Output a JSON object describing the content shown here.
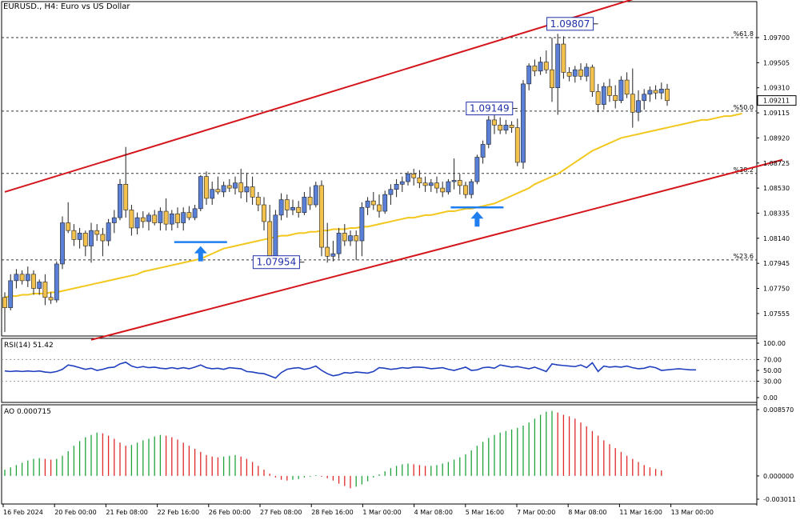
{
  "header": {
    "symbol_line": "EURUSD., H4:  Euro vs US Dollar"
  },
  "colors": {
    "bull_body": "#5a7fd6",
    "bear_body": "#f2c14e",
    "wick": "#222222",
    "channel": "#d4161c",
    "ma": "#f2c81f",
    "rsi": "#1f3fbf",
    "ao_up": "#1fa33a",
    "ao_down": "#e0282b",
    "marker": "#1f7ef0",
    "fib": "#333333",
    "label_box": "#1f2fa8",
    "price_tag": "#ffffff"
  },
  "chart_data": [
    {
      "type": "candlestick",
      "title": "EURUSD., H4: Euro vs US Dollar",
      "y_ticks": [
        "1.09700",
        "1.09505",
        "1.09310",
        "1.09115",
        "1.08920",
        "1.08725",
        "1.08530",
        "1.08335",
        "1.08140",
        "1.07945",
        "1.07750",
        "1.07555"
      ],
      "ylim": [
        1.0738,
        1.0998
      ],
      "x_tick_labels": [
        "16 Feb 2024",
        "20 Feb 00:00",
        "21 Feb 08:00",
        "22 Feb 16:00",
        "26 Feb 00:00",
        "27 Feb 08:00",
        "28 Feb 16:00",
        "1 Mar 00:00",
        "4 Mar 08:00",
        "5 Mar 16:00",
        "7 Mar 00:00",
        "8 Mar 08:00",
        "11 Mar 16:00",
        "13 Mar 00:00"
      ],
      "current_price": "1.09211",
      "fib_levels": [
        {
          "label": "%61.8",
          "value": 1.097
        },
        {
          "label": "%50.0",
          "value": 1.09129
        },
        {
          "label": "%38.2",
          "value": 1.08644
        },
        {
          "label": "%23.6",
          "value": 1.07972
        }
      ],
      "price_labels": [
        {
          "text": "1.09807",
          "value": 1.09807,
          "candle": 103
        },
        {
          "text": "1.09149",
          "value": 1.09149,
          "candle": 89
        },
        {
          "text": "1.07954",
          "value": 1.07954,
          "candle": 52
        }
      ],
      "channel_lines": [
        {
          "p1": [
            0,
            1.085
          ],
          "p2": [
            115,
            1.1008
          ]
        },
        {
          "p1": [
            15,
            1.0735
          ],
          "p2": [
            135,
            1.0875
          ]
        }
      ],
      "ma_values": [
        1.0768,
        1.0769,
        1.0769,
        1.077,
        1.077,
        1.0771,
        1.0771,
        1.0771,
        1.0772,
        1.0772,
        1.0773,
        1.0774,
        1.0775,
        1.0776,
        1.0777,
        1.0778,
        1.0779,
        1.078,
        1.0781,
        1.0782,
        1.0783,
        1.0784,
        1.0785,
        1.0786,
        1.0788,
        1.0789,
        1.079,
        1.0791,
        1.0792,
        1.0793,
        1.0794,
        1.0795,
        1.0796,
        1.0797,
        1.0798,
        1.08,
        1.0802,
        1.0804,
        1.0806,
        1.0807,
        1.0808,
        1.0809,
        1.081,
        1.0811,
        1.0812,
        1.0813,
        1.0814,
        1.0815,
        1.0816,
        1.0816,
        1.0817,
        1.0818,
        1.0818,
        1.0819,
        1.0819,
        1.082,
        1.082,
        1.0821,
        1.0821,
        1.0821,
        1.0822,
        1.0822,
        1.0823,
        1.0823,
        1.0824,
        1.0825,
        1.0826,
        1.0827,
        1.0828,
        1.0829,
        1.083,
        1.083,
        1.0831,
        1.0832,
        1.0832,
        1.0833,
        1.0834,
        1.0835,
        1.0835,
        1.0836,
        1.0837,
        1.0837,
        1.0838,
        1.0839,
        1.084,
        1.0841,
        1.0843,
        1.0845,
        1.0847,
        1.0849,
        1.0851,
        1.0853,
        1.0856,
        1.0858,
        1.086,
        1.0862,
        1.0864,
        1.0867,
        1.087,
        1.0873,
        1.0876,
        1.0879,
        1.0882,
        1.0884,
        1.0886,
        1.0888,
        1.089,
        1.0892,
        1.0893,
        1.0894,
        1.0895,
        1.0896,
        1.0897,
        1.0898,
        1.0899,
        1.09,
        1.0901,
        1.0902,
        1.0903,
        1.0904,
        1.0905,
        1.0906,
        1.0906,
        1.0907,
        1.0908,
        1.0909,
        1.0909,
        1.091,
        1.0911
      ],
      "candles": [
        [
          1.0768,
          1.0772,
          1.0741,
          1.076
        ],
        [
          1.076,
          1.0786,
          1.0758,
          1.0781
        ],
        [
          1.0781,
          1.079,
          1.0775,
          1.0786
        ],
        [
          1.0786,
          1.0789,
          1.0778,
          1.0781
        ],
        [
          1.0781,
          1.0792,
          1.0776,
          1.0786
        ],
        [
          1.0786,
          1.0789,
          1.077,
          1.0775
        ],
        [
          1.0775,
          1.0782,
          1.077,
          1.078
        ],
        [
          1.078,
          1.0786,
          1.0762,
          1.0768
        ],
        [
          1.0768,
          1.0772,
          1.0763,
          1.0766
        ],
        [
          1.0766,
          1.0796,
          1.0764,
          1.0794
        ],
        [
          1.0794,
          1.0831,
          1.079,
          1.0826
        ],
        [
          1.0826,
          1.0842,
          1.0818,
          1.082
        ],
        [
          1.082,
          1.0825,
          1.0808,
          1.0813
        ],
        [
          1.0813,
          1.0822,
          1.0806,
          1.0818
        ],
        [
          1.0818,
          1.082,
          1.08,
          1.0808
        ],
        [
          1.0808,
          1.0826,
          1.0795,
          1.082
        ],
        [
          1.082,
          1.0825,
          1.0812,
          1.0817
        ],
        [
          1.0817,
          1.0822,
          1.08,
          1.0812
        ],
        [
          1.0812,
          1.0829,
          1.0808,
          1.0826
        ],
        [
          1.0826,
          1.0836,
          1.0818,
          1.083
        ],
        [
          1.083,
          1.086,
          1.0828,
          1.0856
        ],
        [
          1.0856,
          1.0885,
          1.083,
          1.0836
        ],
        [
          1.0836,
          1.084,
          1.0816,
          1.0822
        ],
        [
          1.0822,
          1.0834,
          1.0817,
          1.083
        ],
        [
          1.083,
          1.0835,
          1.0822,
          1.0827
        ],
        [
          1.0827,
          1.0834,
          1.082,
          1.0832
        ],
        [
          1.0832,
          1.0836,
          1.0824,
          1.0826
        ],
        [
          1.0826,
          1.0838,
          1.082,
          1.0835
        ],
        [
          1.0835,
          1.0845,
          1.082,
          1.0825
        ],
        [
          1.0825,
          1.0836,
          1.082,
          1.0833
        ],
        [
          1.0833,
          1.0838,
          1.0822,
          1.0826
        ],
        [
          1.0826,
          1.0838,
          1.082,
          1.0834
        ],
        [
          1.0834,
          1.0839,
          1.0828,
          1.083
        ],
        [
          1.083,
          1.084,
          1.0828,
          1.0837
        ],
        [
          1.0837,
          1.0863,
          1.0835,
          1.0862
        ],
        [
          1.0862,
          1.0866,
          1.084,
          1.0845
        ],
        [
          1.0845,
          1.0858,
          1.084,
          1.0852
        ],
        [
          1.0852,
          1.0862,
          1.0848,
          1.085
        ],
        [
          1.085,
          1.0858,
          1.0846,
          1.0855
        ],
        [
          1.0855,
          1.086,
          1.085,
          1.0853
        ],
        [
          1.0853,
          1.0862,
          1.0848,
          1.0857
        ],
        [
          1.0857,
          1.0868,
          1.0845,
          1.085
        ],
        [
          1.085,
          1.0865,
          1.0842,
          1.0854
        ],
        [
          1.0854,
          1.0862,
          1.084,
          1.0846
        ],
        [
          1.0846,
          1.085,
          1.0835,
          1.084
        ],
        [
          1.084,
          1.0846,
          1.082,
          1.0827
        ],
        [
          1.0827,
          1.084,
          1.0794,
          1.08
        ],
        [
          1.08,
          1.0836,
          1.0798,
          1.0832
        ],
        [
          1.0832,
          1.0849,
          1.0828,
          1.0844
        ],
        [
          1.0844,
          1.0848,
          1.083,
          1.0836
        ],
        [
          1.0836,
          1.0844,
          1.0832,
          1.0838
        ],
        [
          1.0838,
          1.0843,
          1.083,
          1.0834
        ],
        [
          1.0834,
          1.085,
          1.0832,
          1.0846
        ],
        [
          1.0846,
          1.0854,
          1.0836,
          1.084
        ],
        [
          1.084,
          1.0858,
          1.0838,
          1.0855
        ],
        [
          1.0855,
          1.0859,
          1.08,
          1.0807
        ],
        [
          1.0807,
          1.0826,
          1.0795,
          1.08
        ],
        [
          1.08,
          1.0812,
          1.0796,
          1.0802
        ],
        [
          1.0802,
          1.0822,
          1.0798,
          1.0818
        ],
        [
          1.0818,
          1.0825,
          1.0808,
          1.0812
        ],
        [
          1.0812,
          1.082,
          1.0808,
          1.0816
        ],
        [
          1.0816,
          1.082,
          1.0797,
          1.0812
        ],
        [
          1.0812,
          1.0842,
          1.08,
          1.0838
        ],
        [
          1.0838,
          1.0846,
          1.0832,
          1.0843
        ],
        [
          1.0843,
          1.085,
          1.0836,
          1.084
        ],
        [
          1.084,
          1.0848,
          1.083,
          1.0835
        ],
        [
          1.0835,
          1.0851,
          1.0833,
          1.0848
        ],
        [
          1.0848,
          1.0856,
          1.084,
          1.0852
        ],
        [
          1.0852,
          1.086,
          1.0846,
          1.0856
        ],
        [
          1.0856,
          1.0862,
          1.085,
          1.0858
        ],
        [
          1.0858,
          1.0866,
          1.0855,
          1.0864
        ],
        [
          1.0864,
          1.0868,
          1.0855,
          1.0861
        ],
        [
          1.0861,
          1.0867,
          1.0853,
          1.0857
        ],
        [
          1.0857,
          1.0862,
          1.085,
          1.0855
        ],
        [
          1.0855,
          1.086,
          1.085,
          1.0857
        ],
        [
          1.0857,
          1.0862,
          1.0849,
          1.0853
        ],
        [
          1.0853,
          1.0858,
          1.0846,
          1.085
        ],
        [
          1.085,
          1.086,
          1.0848,
          1.0858
        ],
        [
          1.0858,
          1.0876,
          1.0852,
          1.0859
        ],
        [
          1.0859,
          1.0864,
          1.0848,
          1.0855
        ],
        [
          1.0855,
          1.0858,
          1.0845,
          1.0848
        ],
        [
          1.0848,
          1.086,
          1.0845,
          1.0858
        ],
        [
          1.0858,
          1.0879,
          1.0856,
          1.0877
        ],
        [
          1.0877,
          1.089,
          1.0872,
          1.0887
        ],
        [
          1.0887,
          1.0909,
          1.0884,
          1.0906
        ],
        [
          1.0906,
          1.091,
          1.0895,
          1.0902
        ],
        [
          1.0902,
          1.0908,
          1.0895,
          1.0898
        ],
        [
          1.0898,
          1.0906,
          1.0895,
          1.0902
        ],
        [
          1.0902,
          1.0905,
          1.0896,
          1.09
        ],
        [
          1.09,
          1.0907,
          1.087,
          1.0873
        ],
        [
          1.0873,
          1.0937,
          1.0868,
          1.0934
        ],
        [
          1.0934,
          1.095,
          1.0929,
          1.0948
        ],
        [
          1.0948,
          1.0953,
          1.094,
          1.0944
        ],
        [
          1.0944,
          1.0955,
          1.0941,
          1.0951
        ],
        [
          1.0951,
          1.096,
          1.0942,
          1.0945
        ],
        [
          1.0945,
          1.097,
          1.092,
          1.0931
        ],
        [
          1.0931,
          1.0973,
          1.091,
          1.0965
        ],
        [
          1.0965,
          1.0971,
          1.0938,
          1.0943
        ],
        [
          1.0943,
          1.0947,
          1.0936,
          1.094
        ],
        [
          1.094,
          1.0948,
          1.0935,
          1.0945
        ],
        [
          1.0945,
          1.095,
          1.0937,
          1.094
        ],
        [
          1.094,
          1.095,
          1.0936,
          1.0947
        ],
        [
          1.0947,
          1.0949,
          1.0924,
          1.0928
        ],
        [
          1.0928,
          1.0934,
          1.0912,
          1.0918
        ],
        [
          1.0918,
          1.0935,
          1.0914,
          1.0932
        ],
        [
          1.0932,
          1.0938,
          1.092,
          1.0925
        ],
        [
          1.0925,
          1.0933,
          1.0915,
          1.0921
        ],
        [
          1.0921,
          1.094,
          1.0919,
          1.0937
        ],
        [
          1.0937,
          1.0943,
          1.0923,
          1.0926
        ],
        [
          1.0926,
          1.0946,
          1.09,
          1.0912
        ],
        [
          1.0912,
          1.0929,
          1.0905,
          1.0921
        ],
        [
          1.0921,
          1.093,
          1.0914,
          1.0926
        ],
        [
          1.0926,
          1.0932,
          1.092,
          1.0929
        ],
        [
          1.0929,
          1.0933,
          1.0922,
          1.0927
        ],
        [
          1.0927,
          1.0935,
          1.0922,
          1.093
        ],
        [
          1.093,
          1.0934,
          1.0917,
          1.0921
        ]
      ],
      "signal_markers": [
        {
          "candle": 34,
          "value": 1.0811
        },
        {
          "candle": 82,
          "value": 1.0838
        }
      ]
    },
    {
      "type": "line",
      "title": "RSI(14) 51.42",
      "y_ticks": [
        "100.00",
        "70.00",
        "50.00",
        "30.00",
        "0.00"
      ],
      "ylim": [
        0,
        100
      ],
      "levels": [
        70,
        30
      ],
      "values": [
        49,
        48,
        49,
        48,
        49,
        48,
        49,
        47,
        46,
        48,
        52,
        60,
        58,
        55,
        52,
        54,
        50,
        52,
        55,
        56,
        62,
        65,
        58,
        55,
        57,
        55,
        56,
        54,
        53,
        55,
        53,
        55,
        53,
        56,
        60,
        55,
        53,
        54,
        52,
        55,
        54,
        53,
        48,
        47,
        45,
        44,
        40,
        36,
        46,
        52,
        54,
        55,
        52,
        54,
        58,
        50,
        44,
        40,
        42,
        46,
        45,
        47,
        46,
        45,
        48,
        55,
        54,
        52,
        53,
        55,
        54,
        56,
        56,
        55,
        53,
        54,
        55,
        52,
        50,
        53,
        56,
        50,
        51,
        55,
        56,
        54,
        60,
        58,
        56,
        57,
        55,
        53,
        56,
        52,
        48,
        62,
        60,
        59,
        58,
        57,
        60,
        55,
        64,
        48,
        58,
        56,
        57,
        56,
        58,
        55,
        53,
        54,
        57,
        55,
        50,
        51,
        52,
        53,
        52,
        51,
        51
      ]
    },
    {
      "type": "bar",
      "title": "AO 0.000715",
      "y_ticks": [
        "0.008570",
        "0.000000",
        "-0.003011"
      ],
      "ylim": [
        -0.003011,
        0.00857
      ],
      "values": [
        0.0008,
        0.0011,
        0.0014,
        0.0017,
        0.002,
        0.0022,
        0.0023,
        0.0022,
        0.0021,
        0.0022,
        0.0026,
        0.0032,
        0.0039,
        0.0045,
        0.005,
        0.0053,
        0.0056,
        0.0055,
        0.0052,
        0.0048,
        0.0043,
        0.0039,
        0.004,
        0.0043,
        0.0046,
        0.0048,
        0.0051,
        0.0053,
        0.0052,
        0.005,
        0.0047,
        0.0043,
        0.0039,
        0.0035,
        0.0031,
        0.0027,
        0.0025,
        0.0024,
        0.0025,
        0.0026,
        0.0027,
        0.0025,
        0.0022,
        0.0018,
        0.0013,
        0.0008,
        0.0003,
        -0.0002,
        -0.0005,
        -0.0006,
        -0.0005,
        -0.0004,
        -0.0002,
        -0.0001,
        0.0001,
        -0.0001,
        -0.0003,
        -0.0006,
        -0.001,
        -0.0013,
        -0.0016,
        -0.0014,
        -0.0011,
        -0.0007,
        -0.0002,
        0.0002,
        0.0006,
        0.001,
        0.0013,
        0.0015,
        0.0016,
        0.0015,
        0.0014,
        0.0013,
        0.0013,
        0.0014,
        0.0016,
        0.0018,
        0.0021,
        0.0024,
        0.0028,
        0.0033,
        0.0039,
        0.0044,
        0.0049,
        0.0053,
        0.0056,
        0.0058,
        0.006,
        0.0062,
        0.0065,
        0.0069,
        0.0074,
        0.0079,
        0.0083,
        0.0084,
        0.0082,
        0.0079,
        0.0077,
        0.0074,
        0.0069,
        0.0064,
        0.0058,
        0.0052,
        0.0046,
        0.0041,
        0.0036,
        0.0031,
        0.0026,
        0.0022,
        0.0018,
        0.0014,
        0.0011,
        0.0009,
        0.0007
      ]
    }
  ]
}
